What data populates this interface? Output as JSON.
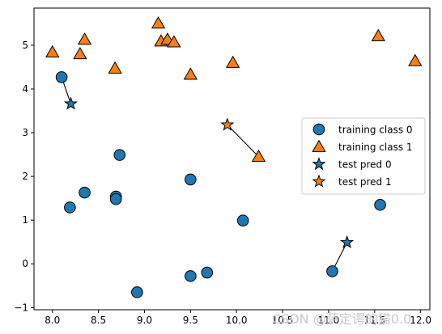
{
  "chart_data": {
    "type": "scatter",
    "title": "",
    "xlabel": "",
    "ylabel": "",
    "xlim": [
      7.8,
      12.1
    ],
    "ylim": [
      -1.05,
      5.85
    ],
    "xticks": [
      8.0,
      8.5,
      9.0,
      9.5,
      10.0,
      10.5,
      11.0,
      11.5,
      12.0
    ],
    "xtick_labels": [
      "8.0",
      "8.5",
      "9.0",
      "9.5",
      "10.0",
      "10.5",
      "11.0",
      "11.5",
      "12.0"
    ],
    "yticks": [
      -1,
      0,
      1,
      2,
      3,
      4,
      5
    ],
    "ytick_labels": [
      "−1",
      "0",
      "1",
      "2",
      "3",
      "4",
      "5"
    ],
    "grid": false,
    "legend_position": "center-right",
    "series": [
      {
        "name": "training class 0",
        "marker": "circle",
        "color": "#1f77b4",
        "points": [
          [
            8.1,
            4.27
          ],
          [
            8.19,
            1.29
          ],
          [
            8.35,
            1.63
          ],
          [
            8.69,
            1.54
          ],
          [
            8.69,
            1.48
          ],
          [
            8.73,
            2.49
          ],
          [
            8.92,
            -0.65
          ],
          [
            9.5,
            1.93
          ],
          [
            9.5,
            -0.28
          ],
          [
            9.68,
            -0.2
          ],
          [
            10.07,
            0.99
          ],
          [
            11.04,
            -0.17
          ],
          [
            11.56,
            1.35
          ]
        ]
      },
      {
        "name": "training class 1",
        "marker": "triangle",
        "color": "#ff7f0e",
        "points": [
          [
            8.0,
            4.84
          ],
          [
            8.3,
            4.8
          ],
          [
            8.35,
            5.13
          ],
          [
            8.68,
            4.47
          ],
          [
            9.15,
            5.5
          ],
          [
            9.18,
            5.09
          ],
          [
            9.25,
            5.13
          ],
          [
            9.32,
            5.07
          ],
          [
            9.5,
            4.33
          ],
          [
            9.96,
            4.6
          ],
          [
            10.24,
            2.45
          ],
          [
            11.54,
            5.21
          ],
          [
            11.94,
            4.64
          ]
        ]
      },
      {
        "name": "test pred 0",
        "marker": "star",
        "color": "#1f77b4",
        "points": [
          [
            8.2,
            3.66
          ],
          [
            11.2,
            0.49
          ]
        ]
      },
      {
        "name": "test pred 1",
        "marker": "star",
        "color": "#ff7f0e",
        "points": [
          [
            9.9,
            3.18
          ]
        ]
      }
    ],
    "neighbor_lines": [
      [
        [
          8.2,
          3.66
        ],
        [
          8.1,
          4.27
        ]
      ],
      [
        [
          9.9,
          3.18
        ],
        [
          10.24,
          2.45
        ]
      ],
      [
        [
          11.2,
          0.49
        ],
        [
          11.04,
          -0.17
        ]
      ]
    ]
  },
  "watermark": "CSDN @萨定谔的猫0.0"
}
